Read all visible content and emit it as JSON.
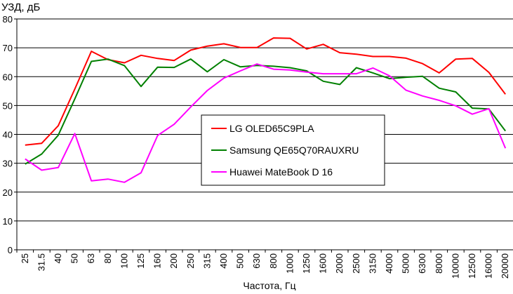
{
  "chart_data": {
    "type": "line",
    "title": "",
    "xlabel": "Частота, Гц",
    "ylabel": "УЗД, дБ",
    "ylim": [
      0,
      80
    ],
    "yticks": [
      "0",
      "10",
      "20",
      "30",
      "40",
      "50",
      "60",
      "70",
      "80"
    ],
    "grid": true,
    "legend_position": "center",
    "categories": [
      "25",
      "31.5",
      "40",
      "50",
      "63",
      "80",
      "100",
      "125",
      "160",
      "200",
      "250",
      "315",
      "400",
      "500",
      "630",
      "800",
      "1000",
      "1250",
      "1600",
      "2000",
      "2500",
      "3150",
      "4000",
      "5000",
      "6300",
      "8000",
      "10000",
      "12500",
      "16000",
      "20000"
    ],
    "series": [
      {
        "name": "LG OLED65C9PLA",
        "color": "#ff0000",
        "values": [
          36.3,
          36.9,
          43.0,
          55.7,
          68.8,
          65.9,
          64.8,
          67.4,
          66.3,
          65.6,
          69.2,
          70.6,
          71.4,
          70.1,
          70.1,
          73.4,
          73.3,
          69.6,
          71.2,
          68.3,
          67.8,
          67.0,
          67.0,
          66.4,
          64.5,
          61.3,
          66.1,
          66.3,
          61.5,
          53.9
        ]
      },
      {
        "name": "Samsung QE65Q70RAUXRU",
        "color": "#008000",
        "values": [
          29.7,
          33.2,
          39.7,
          52.3,
          65.3,
          66.1,
          63.8,
          56.6,
          63.3,
          63.2,
          66.1,
          61.7,
          65.9,
          63.4,
          63.9,
          63.6,
          63.1,
          62.0,
          58.4,
          57.3,
          63.1,
          61.3,
          59.3,
          59.8,
          60.1,
          56.0,
          54.7,
          49.1,
          48.8,
          41.2
        ]
      },
      {
        "name": "Huawei MateBook D 16",
        "color": "#ff00ff",
        "values": [
          31.5,
          27.6,
          28.5,
          40.3,
          23.9,
          24.5,
          23.4,
          26.7,
          39.6,
          43.5,
          49.5,
          55.2,
          59.5,
          62.0,
          64.4,
          62.6,
          62.3,
          61.6,
          61.0,
          61.0,
          61.0,
          63.0,
          60.3,
          55.3,
          53.3,
          51.8,
          49.9,
          47.0,
          48.9,
          35.2
        ]
      }
    ]
  }
}
